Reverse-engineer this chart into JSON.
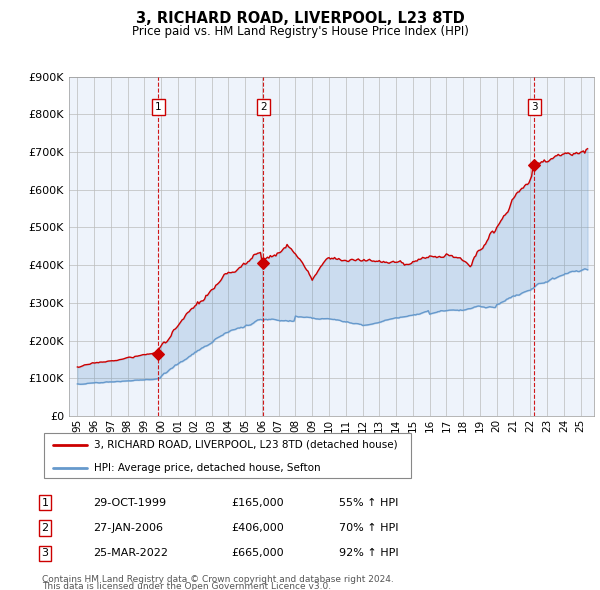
{
  "title": "3, RICHARD ROAD, LIVERPOOL, L23 8TD",
  "subtitle": "Price paid vs. HM Land Registry's House Price Index (HPI)",
  "legend_line1": "3, RICHARD ROAD, LIVERPOOL, L23 8TD (detached house)",
  "legend_line2": "HPI: Average price, detached house, Sefton",
  "red_color": "#cc0000",
  "blue_color": "#6699cc",
  "fill_color": "#dde8f5",
  "sales": [
    {
      "num": 1,
      "date": "29-OCT-1999",
      "price": 165000,
      "pct": "55% ↑ HPI",
      "x": 1999.83
    },
    {
      "num": 2,
      "date": "27-JAN-2006",
      "price": 406000,
      "pct": "70% ↑ HPI",
      "x": 2006.07
    },
    {
      "num": 3,
      "date": "25-MAR-2022",
      "price": 665000,
      "pct": "92% ↑ HPI",
      "x": 2022.23
    }
  ],
  "vline_color": "#cc0000",
  "footnote_line1": "Contains HM Land Registry data © Crown copyright and database right 2024.",
  "footnote_line2": "This data is licensed under the Open Government Licence v3.0.",
  "ylim": [
    0,
    900000
  ],
  "yticks": [
    0,
    100000,
    200000,
    300000,
    400000,
    500000,
    600000,
    700000,
    800000,
    900000
  ],
  "xlim_start": 1994.5,
  "xlim_end": 2025.8,
  "bg_color": "#eef3fb"
}
